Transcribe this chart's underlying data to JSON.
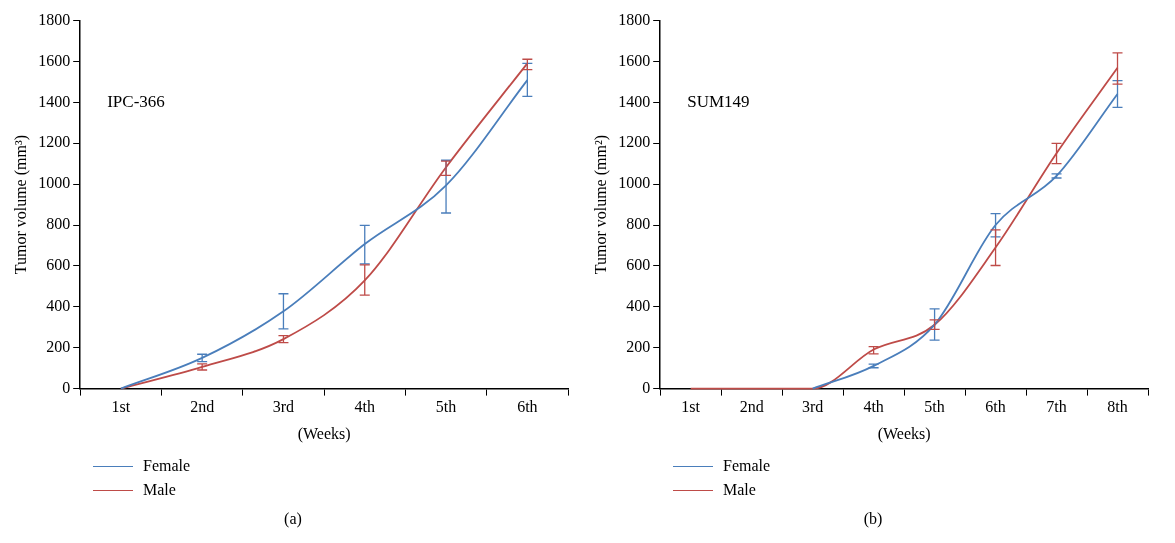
{
  "chart_data": [
    {
      "type": "line",
      "ylabel": "Tumor volume (mm³)",
      "xlabel": "(Weeks)",
      "categories": [
        "1st",
        "2nd",
        "3rd",
        "4th",
        "5th",
        "6th"
      ],
      "ylim": [
        0,
        1800
      ],
      "yticks": [
        0,
        200,
        400,
        600,
        800,
        1000,
        1200,
        1400,
        1600,
        1800
      ],
      "legend": "bottom",
      "annotations": [
        "IPC-366",
        "(a)"
      ],
      "series": [
        {
          "name": "Female",
          "color": "#4a7ebb",
          "values": [
            0,
            150,
            378,
            707,
            994,
            1509
          ],
          "errors": [
            null,
            [
              132,
              168
            ],
            [
              292,
              464
            ],
            [
              610,
              798
            ],
            [
              859,
              1117
            ],
            [
              1429,
              1591
            ]
          ]
        },
        {
          "name": "Male",
          "color": "#be4b48",
          "values": [
            0,
            106,
            242,
            529,
            1083,
            1591
          ],
          "errors": [
            null,
            [
              91,
              121
            ],
            [
              225,
              259
            ],
            [
              457,
              605
            ],
            [
              1043,
              1113
            ],
            [
              1560,
              1611
            ]
          ]
        }
      ]
    },
    {
      "type": "line",
      "ylabel": "Tumor volume (mm²)",
      "xlabel": "(Weeks)",
      "categories": [
        "1st",
        "2nd",
        "3rd",
        "4th",
        "5th",
        "6th",
        "7th",
        "8th"
      ],
      "ylim": [
        0,
        1800
      ],
      "yticks": [
        0,
        200,
        400,
        600,
        800,
        1000,
        1200,
        1400,
        1600,
        1800
      ],
      "legend": "bottom",
      "annotations": [
        "SUM149",
        "(b)"
      ],
      "series": [
        {
          "name": "Female",
          "color": "#4a7ebb",
          "values": [
            null,
            null,
            0,
            111,
            313,
            800,
            1040,
            1441
          ],
          "errors": [
            null,
            null,
            null,
            [
              102,
              120
            ],
            [
              237,
              390
            ],
            [
              742,
              856
            ],
            [
              1030,
              1050
            ],
            [
              1376,
              1506
            ]
          ]
        },
        {
          "name": "Male",
          "color": "#be4b48",
          "values": [
            0,
            0,
            0,
            191,
            312,
            690,
            1151,
            1569
          ],
          "errors": [
            null,
            null,
            null,
            [
              170,
              205
            ],
            [
              290,
              336
            ],
            [
              602,
              776
            ],
            [
              1100,
              1199
            ],
            [
              1489,
              1642
            ]
          ]
        }
      ]
    }
  ]
}
